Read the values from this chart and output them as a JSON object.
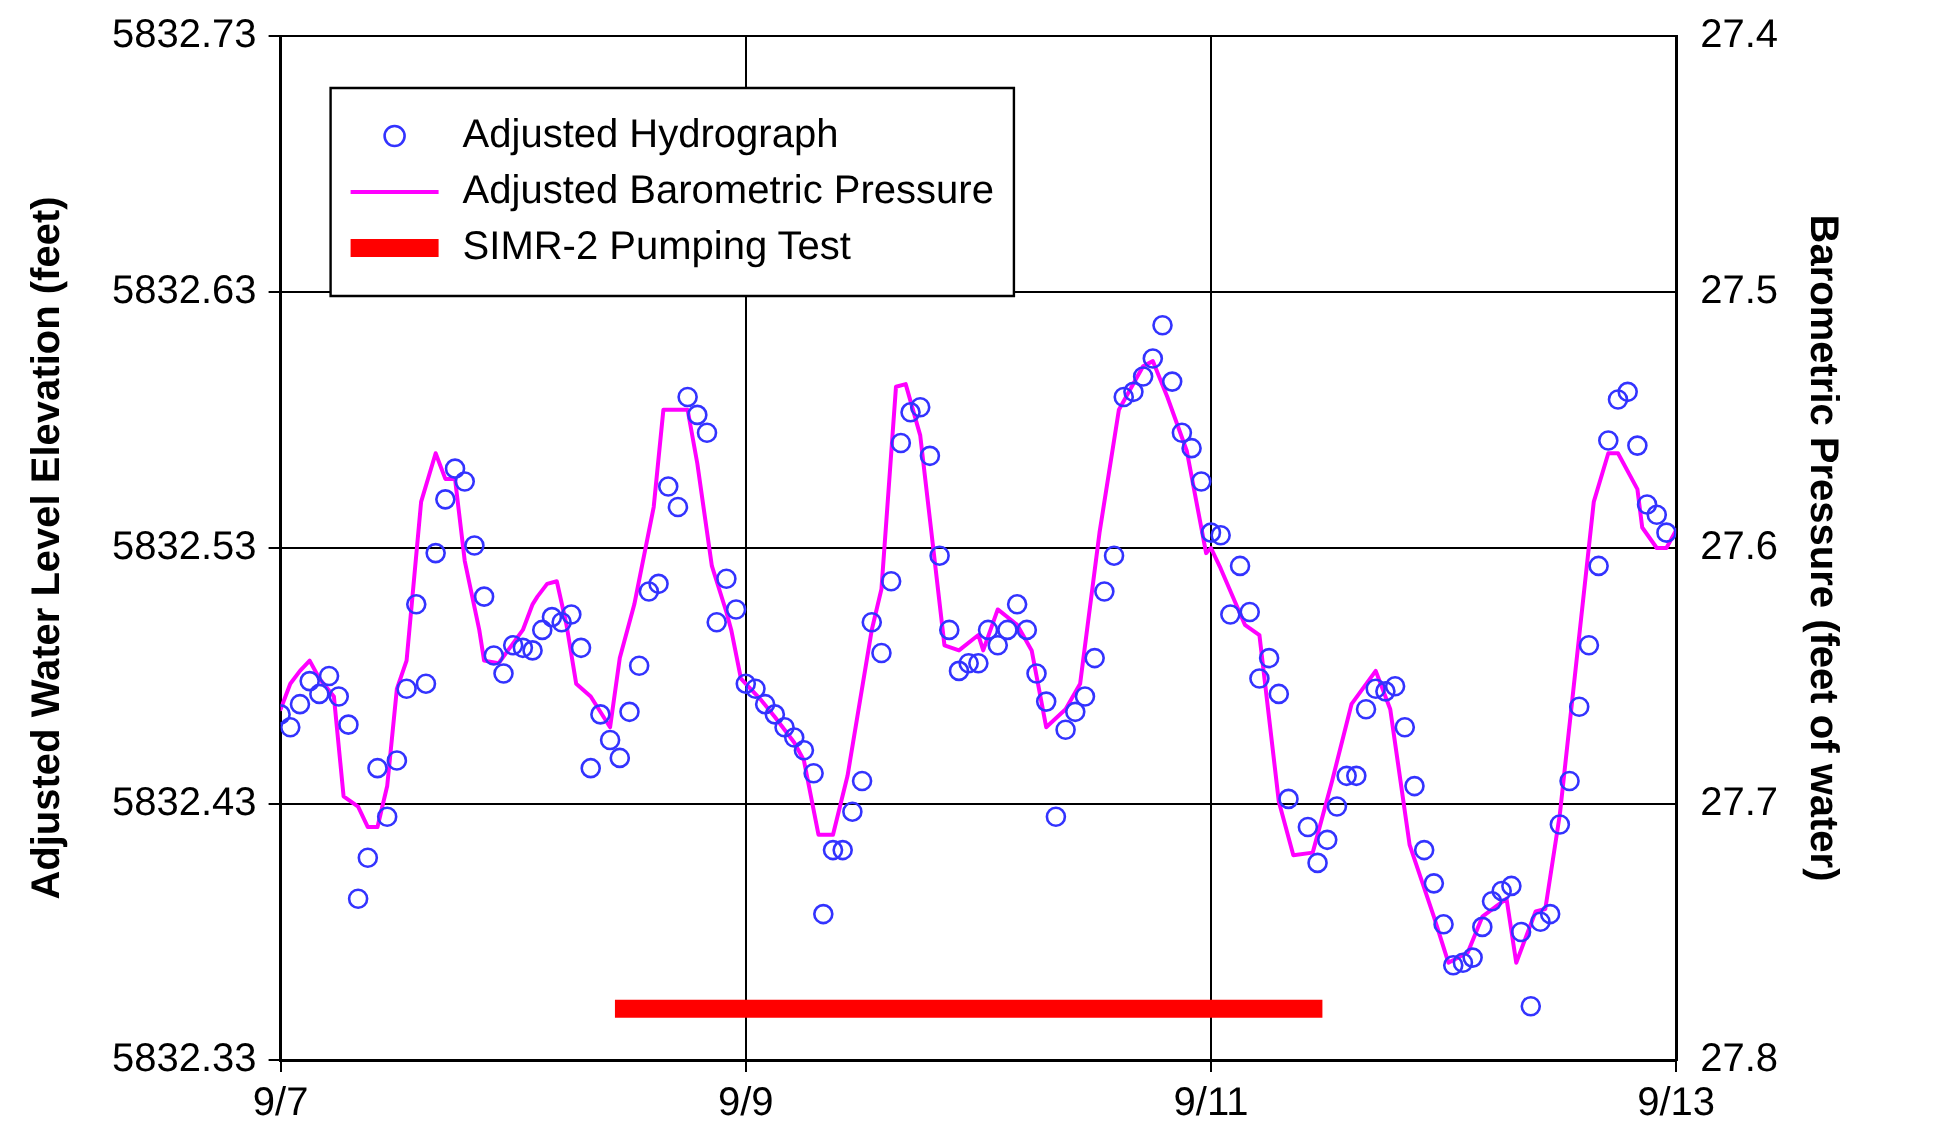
{
  "chart_data": {
    "type": "scatter",
    "ylabel": "Adjusted Water Level Elevation (feet)",
    "y2label": "Barometric Pressure (feet of water)",
    "xlim": [
      "--09-07",
      "--09-13"
    ],
    "xticks": [
      {
        "value": "--09-07",
        "label": "9/7"
      },
      {
        "value": "--09-09",
        "label": "9/9"
      },
      {
        "value": "--09-11",
        "label": "9/11"
      },
      {
        "value": "--09-13",
        "label": "9/13"
      }
    ],
    "ylim": [
      5832.33,
      5832.73
    ],
    "yticks": [
      5832.33,
      5832.43,
      5832.53,
      5832.63,
      5832.73
    ],
    "y2lim": [
      27.8,
      27.4
    ],
    "y2ticks": [
      27.4,
      27.5,
      27.6,
      27.7,
      27.8
    ],
    "grid": true,
    "legend": "top left",
    "series": [
      {
        "name": "Adjusted Hydrograph",
        "marker": "circle",
        "color": "#3333ff",
        "x": [
          "--09-07T00:00",
          "--09-07T01:00",
          "--09-07T02:00",
          "--09-07T03:00",
          "--09-07T04:00",
          "--09-07T05:00",
          "--09-07T06:00",
          "--09-07T07:00",
          "--09-07T08:00",
          "--09-07T09:00",
          "--09-07T10:00",
          "--09-07T11:00",
          "--09-07T12:00",
          "--09-07T13:00",
          "--09-07T14:00",
          "--09-07T15:00",
          "--09-07T16:00",
          "--09-07T17:00",
          "--09-07T18:00",
          "--09-07T19:00",
          "--09-07T20:00",
          "--09-07T21:00",
          "--09-07T22:00",
          "--09-07T23:00",
          "--09-08T00:00",
          "--09-08T01:00",
          "--09-08T02:00",
          "--09-08T03:00",
          "--09-08T04:00",
          "--09-08T05:00",
          "--09-08T06:00",
          "--09-08T07:00",
          "--09-08T08:00",
          "--09-08T09:00",
          "--09-08T10:00",
          "--09-08T11:00",
          "--09-08T12:00",
          "--09-08T13:00",
          "--09-08T14:00",
          "--09-08T15:00",
          "--09-08T16:00",
          "--09-08T17:00",
          "--09-08T18:00",
          "--09-08T19:00",
          "--09-08T20:00",
          "--09-08T21:00",
          "--09-08T22:00",
          "--09-08T23:00",
          "--09-09T00:00",
          "--09-09T01:00",
          "--09-09T02:00",
          "--09-09T03:00",
          "--09-09T04:00",
          "--09-09T05:00",
          "--09-09T06:00",
          "--09-09T07:00",
          "--09-09T08:00",
          "--09-09T09:00",
          "--09-09T10:00",
          "--09-09T11:00",
          "--09-09T12:00",
          "--09-09T13:00",
          "--09-09T14:00",
          "--09-09T15:00",
          "--09-09T16:00",
          "--09-09T17:00",
          "--09-09T18:00",
          "--09-09T19:00",
          "--09-09T20:00",
          "--09-09T21:00",
          "--09-09T22:00",
          "--09-09T23:00",
          "--09-10T00:00",
          "--09-10T01:00",
          "--09-10T02:00",
          "--09-10T03:00",
          "--09-10T04:00",
          "--09-10T05:00",
          "--09-10T06:00",
          "--09-10T07:00",
          "--09-10T08:00",
          "--09-10T09:00",
          "--09-10T10:00",
          "--09-10T11:00",
          "--09-10T12:00",
          "--09-10T13:00",
          "--09-10T14:00",
          "--09-10T15:00",
          "--09-10T16:00",
          "--09-10T17:00",
          "--09-10T18:00",
          "--09-10T19:00",
          "--09-10T20:00",
          "--09-10T21:00",
          "--09-10T22:00",
          "--09-10T23:00",
          "--09-11T00:00",
          "--09-11T01:00",
          "--09-11T02:00",
          "--09-11T03:00",
          "--09-11T04:00",
          "--09-11T05:00",
          "--09-11T06:00",
          "--09-11T07:00",
          "--09-11T08:00",
          "--09-11T10:00",
          "--09-11T11:00",
          "--09-11T12:00",
          "--09-11T13:00",
          "--09-11T14:00",
          "--09-11T15:00",
          "--09-11T16:00",
          "--09-11T17:00",
          "--09-11T18:00",
          "--09-11T19:00",
          "--09-11T20:00",
          "--09-11T21:00",
          "--09-11T22:00",
          "--09-11T23:00",
          "--09-12T00:00",
          "--09-12T01:00",
          "--09-12T02:00",
          "--09-12T03:00",
          "--09-12T04:00",
          "--09-12T05:00",
          "--09-12T06:00",
          "--09-12T07:00",
          "--09-12T08:00",
          "--09-12T09:00",
          "--09-12T10:00",
          "--09-12T11:00",
          "--09-12T12:00",
          "--09-12T13:00",
          "--09-12T14:00",
          "--09-12T15:00",
          "--09-12T16:00",
          "--09-12T17:00",
          "--09-12T18:00",
          "--09-12T19:00",
          "--09-12T20:00",
          "--09-12T21:00",
          "--09-12T22:00",
          "--09-12T23:00"
        ],
        "values": [
          5832.465,
          5832.46,
          5832.469,
          5832.478,
          5832.473,
          5832.48,
          5832.472,
          5832.461,
          5832.393,
          5832.409,
          5832.444,
          5832.425,
          5832.447,
          5832.475,
          5832.508,
          5832.477,
          5832.528,
          5832.549,
          5832.561,
          5832.556,
          5832.531,
          5832.511,
          5832.488,
          5832.481,
          5832.492,
          5832.491,
          5832.49,
          5832.498,
          5832.503,
          5832.501,
          5832.504,
          5832.491,
          5832.444,
          5832.465,
          5832.455,
          5832.448,
          5832.466,
          5832.484,
          5832.513,
          5832.516,
          5832.554,
          5832.546,
          5832.589,
          5832.582,
          5832.575,
          5832.501,
          5832.518,
          5832.506,
          5832.477,
          5832.475,
          5832.469,
          5832.465,
          5832.46,
          5832.456,
          5832.451,
          5832.442,
          5832.387,
          5832.412,
          5832.412,
          5832.427,
          5832.439,
          5832.501,
          5832.489,
          5832.517,
          5832.571,
          5832.583,
          5832.585,
          5832.566,
          5832.527,
          5832.498,
          5832.482,
          5832.485,
          5832.485,
          5832.498,
          5832.492,
          5832.498,
          5832.508,
          5832.498,
          5832.481,
          5832.47,
          5832.425,
          5832.459,
          5832.466,
          5832.472,
          5832.487,
          5832.513,
          5832.527,
          5832.589,
          5832.591,
          5832.597,
          5832.604,
          5832.617,
          5832.595,
          5832.575,
          5832.569,
          5832.556,
          5832.536,
          5832.535,
          5832.504,
          5832.523,
          5832.505,
          5832.479,
          5832.487,
          5832.473,
          5832.432,
          5832.421,
          5832.407,
          5832.416,
          5832.429,
          5832.441,
          5832.441,
          5832.467,
          5832.475,
          5832.474,
          5832.476,
          5832.46,
          5832.437,
          5832.412,
          5832.399,
          5832.383,
          5832.367,
          5832.368,
          5832.37,
          5832.382,
          5832.392,
          5832.396,
          5832.398,
          5832.38,
          5832.351,
          5832.384,
          5832.387,
          5832.422,
          5832.439,
          5832.468,
          5832.492,
          5832.523,
          5832.572,
          5832.588,
          5832.591,
          5832.57,
          5832.547,
          5832.543,
          5832.536
        ]
      },
      {
        "name": "Adjusted Barometric Pressure",
        "type": "line",
        "axis": "y2",
        "marker": "none",
        "line_style": "solid",
        "color": "#ff00ff",
        "x": [
          "--09-07T00:00",
          "--09-07T01:00",
          "--09-07T02:00",
          "--09-07T03:00",
          "--09-07T04:00",
          "--09-07T05:30",
          "--09-07T06:30",
          "--09-07T08:00",
          "--09-07T09:00",
          "--09-07T10:00",
          "--09-07T11:00",
          "--09-07T12:00",
          "--09-07T13:00",
          "--09-07T14:30",
          "--09-07T16:00",
          "--09-07T17:00",
          "--09-07T18:00",
          "--09-07T19:00",
          "--09-07T20:30",
          "--09-07T21:00",
          "--09-07T22:30",
          "--09-08T01:00",
          "--09-08T02:00",
          "--09-08T02:30",
          "--09-08T03:30",
          "--09-08T04:30",
          "--09-08T05:30",
          "--09-08T06:30",
          "--09-08T08:00",
          "--09-08T10:00",
          "--09-08T11:00",
          "--09-08T12:30",
          "--09-08T14:30",
          "--09-08T15:30",
          "--09-08T18:00",
          "--09-08T19:00",
          "--09-08T20:30",
          "--09-08T22:00",
          "--09-08T22:30",
          "--09-08T23:30",
          "--09-09T01:30",
          "--09-09T03:00",
          "--09-09T05:00",
          "--09-09T06:00",
          "--09-09T07:30",
          "--09-09T09:00",
          "--09-09T10:30",
          "--09-09T13:00",
          "--09-09T14:00",
          "--09-09T15:30",
          "--09-09T16:30",
          "--09-09T18:00",
          "--09-09T20:30",
          "--09-09T22:00",
          "--09-10T00:00",
          "--09-10T00:30",
          "--09-10T02:00",
          "--09-10T04:00",
          "--09-10T05:30",
          "--09-10T07:00",
          "--09-10T09:00",
          "--09-10T10:30",
          "--09-10T12:30",
          "--09-10T14:30",
          "--09-10T17:00",
          "--09-10T18:00",
          "--09-10T19:30",
          "--09-10T21:30",
          "--09-10T23:30",
          "--09-11T00:00",
          "--09-11T01:00",
          "--09-11T03:30",
          "--09-11T05:00",
          "--09-11T07:00",
          "--09-11T08:30",
          "--09-11T10:30",
          "--09-11T12:30",
          "--09-11T14:30",
          "--09-11T17:00",
          "--09-11T18:30",
          "--09-11T20:30",
          "--09-11T23:00",
          "--09-12T00:30",
          "--09-12T02:30",
          "--09-12T04:00",
          "--09-12T06:30",
          "--09-12T07:30",
          "--09-12T09:30",
          "--09-12T10:30",
          "--09-12T12:00",
          "--09-12T15:30",
          "--09-12T17:00",
          "--09-12T18:00",
          "--09-12T20:00",
          "--09-12T20:30",
          "--09-12T22:00",
          "--09-12T23:00",
          "--09-13T00:00"
        ],
        "values": [
          27.663,
          27.653,
          27.648,
          27.644,
          27.651,
          27.658,
          27.697,
          27.701,
          27.709,
          27.709,
          27.693,
          27.655,
          27.644,
          27.582,
          27.563,
          27.573,
          27.573,
          27.605,
          27.632,
          27.644,
          27.645,
          27.632,
          27.622,
          27.619,
          27.614,
          27.613,
          27.63,
          27.653,
          27.658,
          27.67,
          27.643,
          27.622,
          27.584,
          27.546,
          27.546,
          27.567,
          27.607,
          27.625,
          27.632,
          27.651,
          27.659,
          27.666,
          27.676,
          27.683,
          27.712,
          27.712,
          27.689,
          27.632,
          27.616,
          27.537,
          27.536,
          27.556,
          27.638,
          27.64,
          27.634,
          27.64,
          27.624,
          27.63,
          27.64,
          27.67,
          27.663,
          27.653,
          27.594,
          27.546,
          27.529,
          27.527,
          27.541,
          27.562,
          27.602,
          27.6,
          27.608,
          27.63,
          27.634,
          27.699,
          27.72,
          27.719,
          27.691,
          27.661,
          27.648,
          27.663,
          27.716,
          27.744,
          27.762,
          27.758,
          27.744,
          27.737,
          27.762,
          27.742,
          27.741,
          27.704,
          27.582,
          27.563,
          27.563,
          27.577,
          27.592,
          27.6,
          27.6,
          27.593
        ]
      },
      {
        "name": "SIMR-2 Pumping Test",
        "type": "line",
        "marker": "none",
        "line_style": "solid",
        "color": "#ff0000",
        "x": [
          "--09-08T10:30",
          "--09-11T11:30"
        ],
        "values": [
          5832.35,
          5832.35
        ]
      }
    ]
  }
}
